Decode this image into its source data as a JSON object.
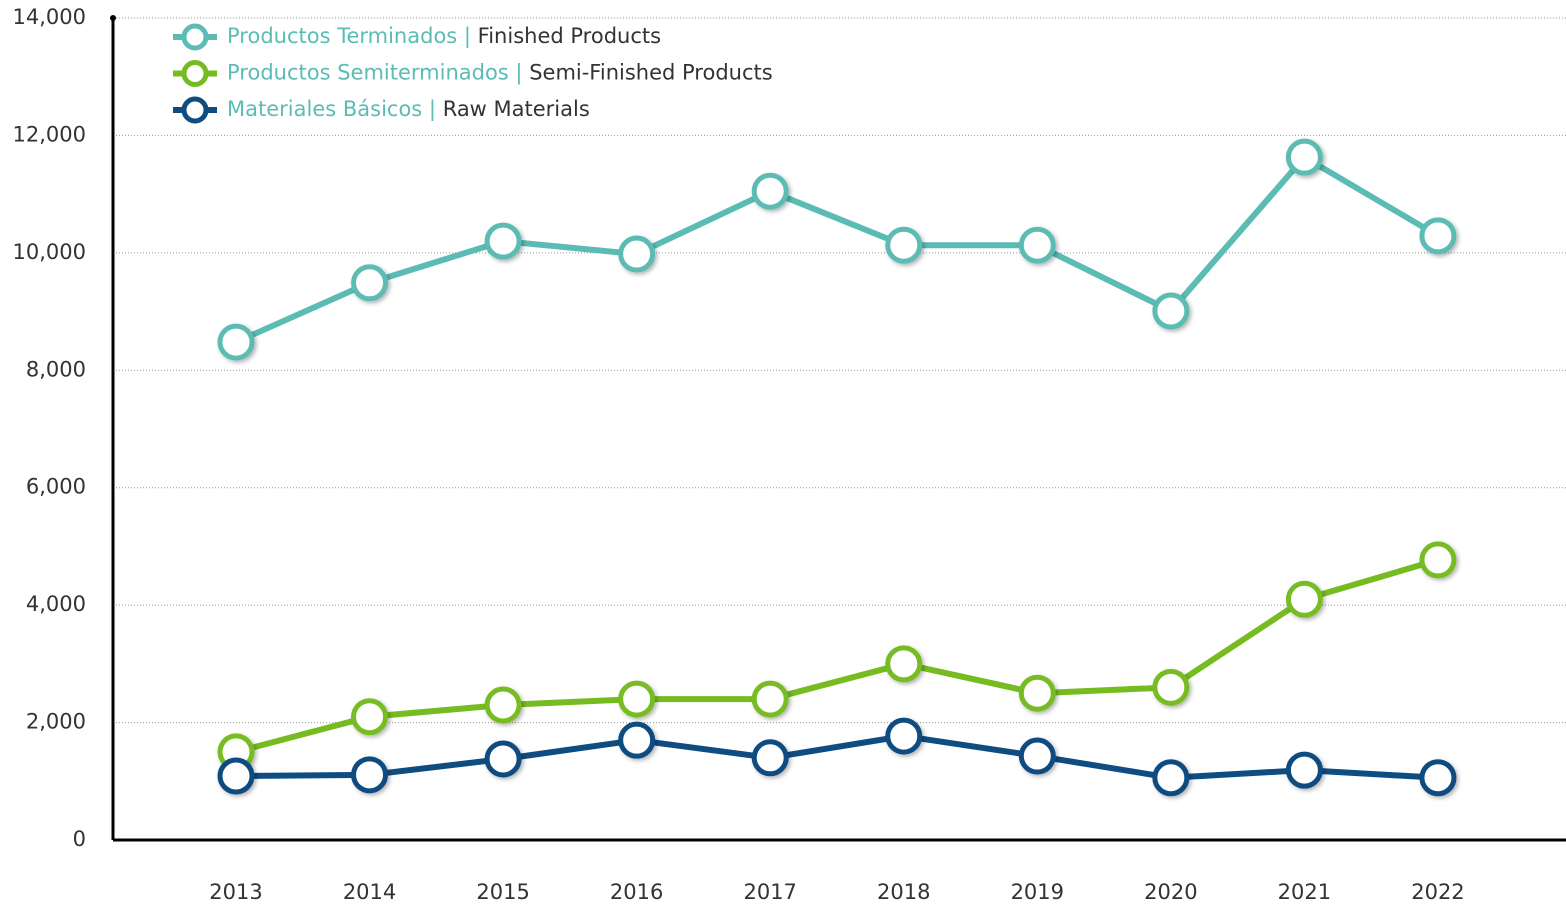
{
  "chart_data": {
    "type": "line",
    "categories": [
      "2013",
      "2014",
      "2015",
      "2016",
      "2017",
      "2018",
      "2019",
      "2020",
      "2021",
      "2022"
    ],
    "series": [
      {
        "name": "Productos Terminados |",
        "name_en": "Finished Products",
        "color": "#5bbcb4",
        "values": [
          8480,
          9490,
          10200,
          9980,
          11050,
          10130,
          10130,
          9010,
          11630,
          10290
        ]
      },
      {
        "name": "Productos Semiterminados |",
        "name_en": "Semi-Finished Products",
        "color": "#76bc21",
        "values": [
          1500,
          2100,
          2300,
          2400,
          2400,
          3000,
          2500,
          2600,
          4100,
          4770
        ]
      },
      {
        "name": "Materiales Básicos |",
        "name_en": "Raw Materials",
        "color": "#0f4c81",
        "values": [
          1090,
          1110,
          1380,
          1700,
          1400,
          1770,
          1430,
          1060,
          1190,
          1060
        ]
      }
    ],
    "ylim": [
      0,
      14000
    ],
    "yticks": [
      0,
      {
        "value": 2000,
        "label": "2,000"
      },
      {
        "value": 4000,
        "label": "4,000"
      },
      {
        "value": 6000,
        "label": "6,000"
      },
      {
        "value": 8000,
        "label": "8,000"
      },
      {
        "value": 10000,
        "label": "10,000"
      },
      {
        "value": 12000,
        "label": "12,000"
      },
      {
        "value": 14000,
        "label": "14,000"
      }
    ],
    "grid": true,
    "legend": "top-left"
  }
}
